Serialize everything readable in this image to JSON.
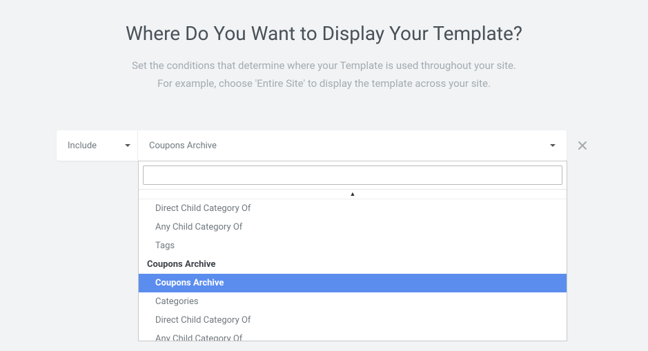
{
  "header": {
    "title": "Where Do You Want to Display Your Template?",
    "subtitle_line1": "Set the conditions that determine where your Template is used throughout your site.",
    "subtitle_line2": "For example, choose 'Entire Site' to display the template across your site."
  },
  "condition": {
    "include_label": "Include",
    "selected_value": "Coupons Archive",
    "search_value": ""
  },
  "dropdown": {
    "items": [
      {
        "type": "item",
        "label": "Direct Child Category Of",
        "selected": false
      },
      {
        "type": "item",
        "label": "Any Child Category Of",
        "selected": false
      },
      {
        "type": "item",
        "label": "Tags",
        "selected": false
      },
      {
        "type": "group",
        "label": "Coupons Archive"
      },
      {
        "type": "item",
        "label": "Coupons Archive",
        "selected": true
      },
      {
        "type": "item",
        "label": "Categories",
        "selected": false
      },
      {
        "type": "item",
        "label": "Direct Child Category Of",
        "selected": false
      },
      {
        "type": "item",
        "label": "Any Child Category Of",
        "selected": false
      }
    ]
  },
  "colors": {
    "page_bg": "#f1f3f5",
    "card_bg": "#ffffff",
    "title_color": "#495157",
    "subtitle_color": "#a4abb0",
    "text_muted": "#6f787e",
    "selected_bg": "#5b8def",
    "selected_text": "#ffffff",
    "border": "#c8c8c8"
  }
}
